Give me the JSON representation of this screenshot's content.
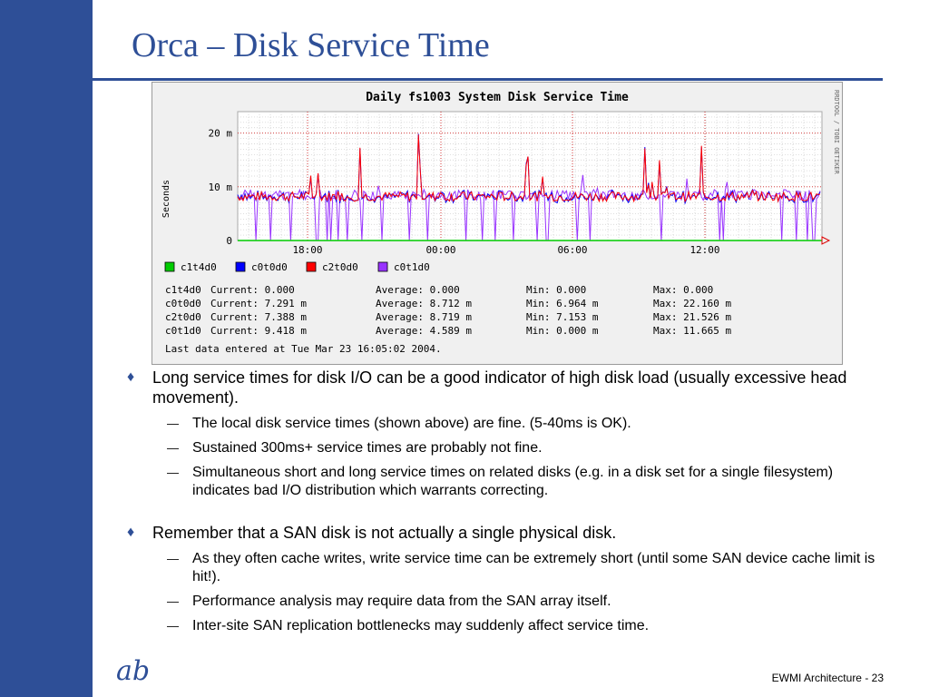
{
  "slide": {
    "title": "Orca – Disk Service Time",
    "footer": "EWMI Architecture - 23",
    "logo": "ab"
  },
  "colors": {
    "brand": "#2e4f97",
    "c1t4d0": "#00cc00",
    "c0t0d0": "#0000ff",
    "c2t0d0": "#ff0000",
    "c0t1d0": "#9933ff"
  },
  "chart_data": {
    "type": "line",
    "title": "Daily fs1003 System Disk Service Time",
    "ylabel": "Seconds",
    "side_label": "RRDTOOL / TOBI OETIKER",
    "ylim": [
      0,
      0.024
    ],
    "yticks": [
      "0",
      "10 m",
      "20 m"
    ],
    "xticks": [
      "18:00",
      "00:00",
      "06:00",
      "12:00"
    ],
    "legend": [
      {
        "name": "c1t4d0",
        "color": "#00cc00"
      },
      {
        "name": "c0t0d0",
        "color": "#0000ff"
      },
      {
        "name": "c2t0d0",
        "color": "#ff0000"
      },
      {
        "name": "c0t1d0",
        "color": "#9933ff"
      }
    ],
    "stats": [
      {
        "disk": "c1t4d0",
        "current": "0.000",
        "average": "0.000",
        "min": "0.000",
        "max": "0.000"
      },
      {
        "disk": "c0t0d0",
        "current": "7.291 m",
        "average": "8.712 m",
        "min": "6.964 m",
        "max": "22.160 m"
      },
      {
        "disk": "c2t0d0",
        "current": "7.388 m",
        "average": "8.719 m",
        "min": "7.153 m",
        "max": "21.526 m"
      },
      {
        "disk": "c0t1d0",
        "current": "9.418 m",
        "average": "4.589 m",
        "min": "0.000 m",
        "max": "11.665 m"
      }
    ],
    "stat_labels": {
      "current": "Current:",
      "average": "Average:",
      "min": "Min:",
      "max": "Max:"
    },
    "last_data": "Last data entered at Tue Mar 23 16:05:02 2004."
  },
  "bullets": [
    {
      "text": "Long service times for disk I/O can be a good indicator of high disk load (usually excessive head movement).",
      "subs": [
        "The local disk service times (shown above) are fine. (5-40ms is OK).",
        "Sustained 300ms+ service times are probably not fine.",
        "Simultaneous short and long service times on related disks (e.g. in a disk set for a single filesystem) indicates bad I/O distribution which warrants correcting."
      ]
    },
    {
      "text": "Remember that a SAN disk is not actually a single physical disk.",
      "subs": [
        "As they often cache writes, write service time can be extremely short (until some SAN device cache limit is hit!).",
        "Performance analysis may require data from the SAN array itself.",
        "Inter-site SAN replication bottlenecks may suddenly affect service time."
      ]
    }
  ],
  "glyphs": {
    "diamond": "♦",
    "dash": "—"
  }
}
